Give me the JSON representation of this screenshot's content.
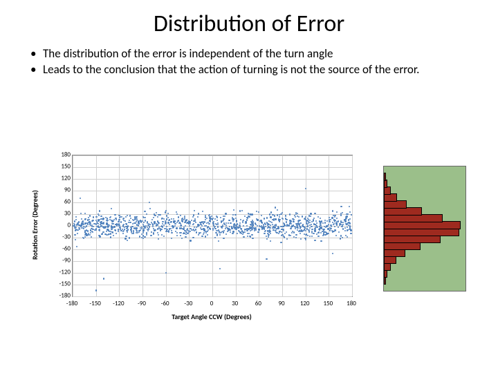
{
  "title": "Distribution of Error",
  "bullets": [
    "The distribution of the error is independent of the turn angle",
    "Leads to the conclusion that the  action of turning is not the source of the error."
  ],
  "scatter": {
    "type": "scatter",
    "xlabel": "Target Angle CCW (Degrees)",
    "ylabel": "Rotation Error (Degrees)",
    "xlim": [
      -180,
      180
    ],
    "ylim": [
      -180,
      180
    ],
    "xtick_step": 30,
    "ytick_step": 30,
    "xticks": [
      -180,
      -150,
      -120,
      -90,
      -60,
      -30,
      0,
      30,
      60,
      90,
      120,
      150,
      180
    ],
    "yticks": [
      -180,
      -150,
      -120,
      -90,
      -60,
      -30,
      0,
      30,
      60,
      90,
      120,
      150,
      180
    ],
    "gridline_color": "#cfcfcf",
    "axis_color": "#888888",
    "background_color": "#ffffff",
    "marker_color": "#4f81bd",
    "marker_size": 2.2,
    "marker_style": "circle",
    "n_points": 1300,
    "error_sigma_deg": 16,
    "seed": 42,
    "outliers": [
      [
        -150,
        -165
      ],
      [
        -140,
        -135
      ],
      [
        -60,
        -120
      ],
      [
        10,
        -110
      ],
      [
        120,
        95
      ],
      [
        70,
        -85
      ],
      [
        -170,
        70
      ],
      [
        155,
        -70
      ]
    ],
    "label_fontsize": 10,
    "tick_fontsize": 9
  },
  "histogram": {
    "type": "histogram",
    "orientation": "horizontal",
    "background_color": "#9bbf8a",
    "bar_fill_color": "#9e2a1f",
    "bar_edge_color": "#000000",
    "bin_centers_deg": [
      -75,
      -65,
      -55,
      -45,
      -35,
      -25,
      -15,
      -5,
      5,
      15,
      25,
      35,
      45,
      55,
      65,
      75
    ],
    "counts": [
      4,
      8,
      14,
      26,
      46,
      78,
      120,
      160,
      162,
      124,
      80,
      48,
      28,
      14,
      8,
      4
    ],
    "count_max": 170,
    "ylim": [
      -90,
      90
    ],
    "tick_fontsize": 8,
    "ytick_labels": [
      "",
      "",
      "",
      "",
      "",
      "",
      ""
    ]
  }
}
